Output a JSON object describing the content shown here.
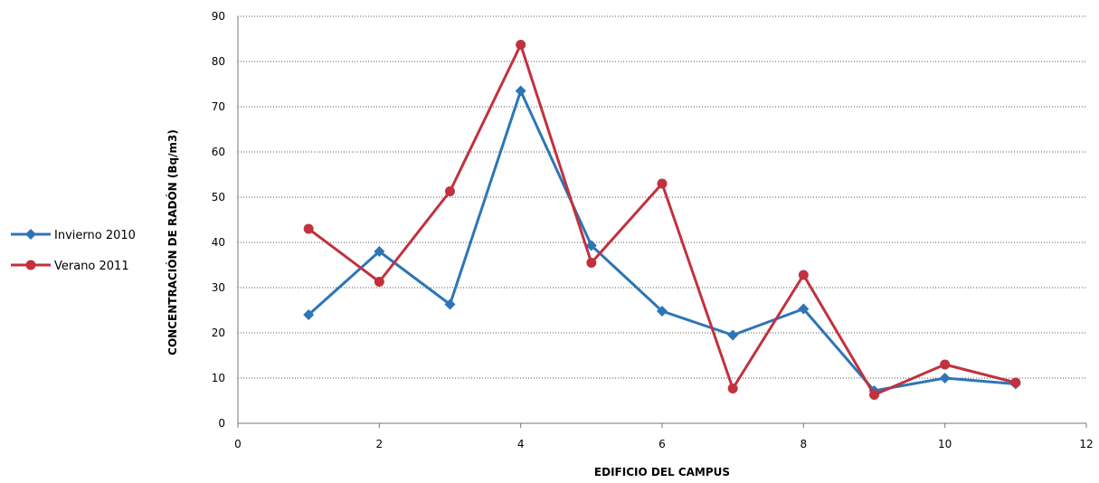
{
  "chart_data": {
    "type": "line",
    "title": "",
    "xlabel": "EDIFICIO DEL CAMPUS",
    "ylabel": "CONCENTRACIÓN DE RADÓN (Bq/m3)",
    "xlim": [
      0,
      12
    ],
    "ylim": [
      0,
      90
    ],
    "x_ticks": [
      0,
      2,
      4,
      6,
      8,
      10,
      12
    ],
    "y_ticks": [
      0,
      10,
      20,
      30,
      40,
      50,
      60,
      70,
      80,
      90
    ],
    "grid": "horizontal-dotted",
    "legend_position": "left",
    "series": [
      {
        "name": "Invierno 2010",
        "color": "#2e75b6",
        "marker": "diamond",
        "x": [
          1,
          2,
          3,
          4,
          5,
          6,
          7,
          8,
          9,
          10,
          11
        ],
        "values": [
          24,
          38,
          26.3,
          73.5,
          39.3,
          24.8,
          19.5,
          25.3,
          7.2,
          10,
          8.7
        ]
      },
      {
        "name": "Verano 2011",
        "color": "#c0323e",
        "marker": "circle",
        "x": [
          1,
          2,
          3,
          4,
          5,
          6,
          7,
          8,
          9,
          10,
          11
        ],
        "values": [
          43,
          31.3,
          51.3,
          83.7,
          35.5,
          53,
          7.7,
          32.8,
          6.3,
          13,
          9
        ]
      }
    ]
  }
}
